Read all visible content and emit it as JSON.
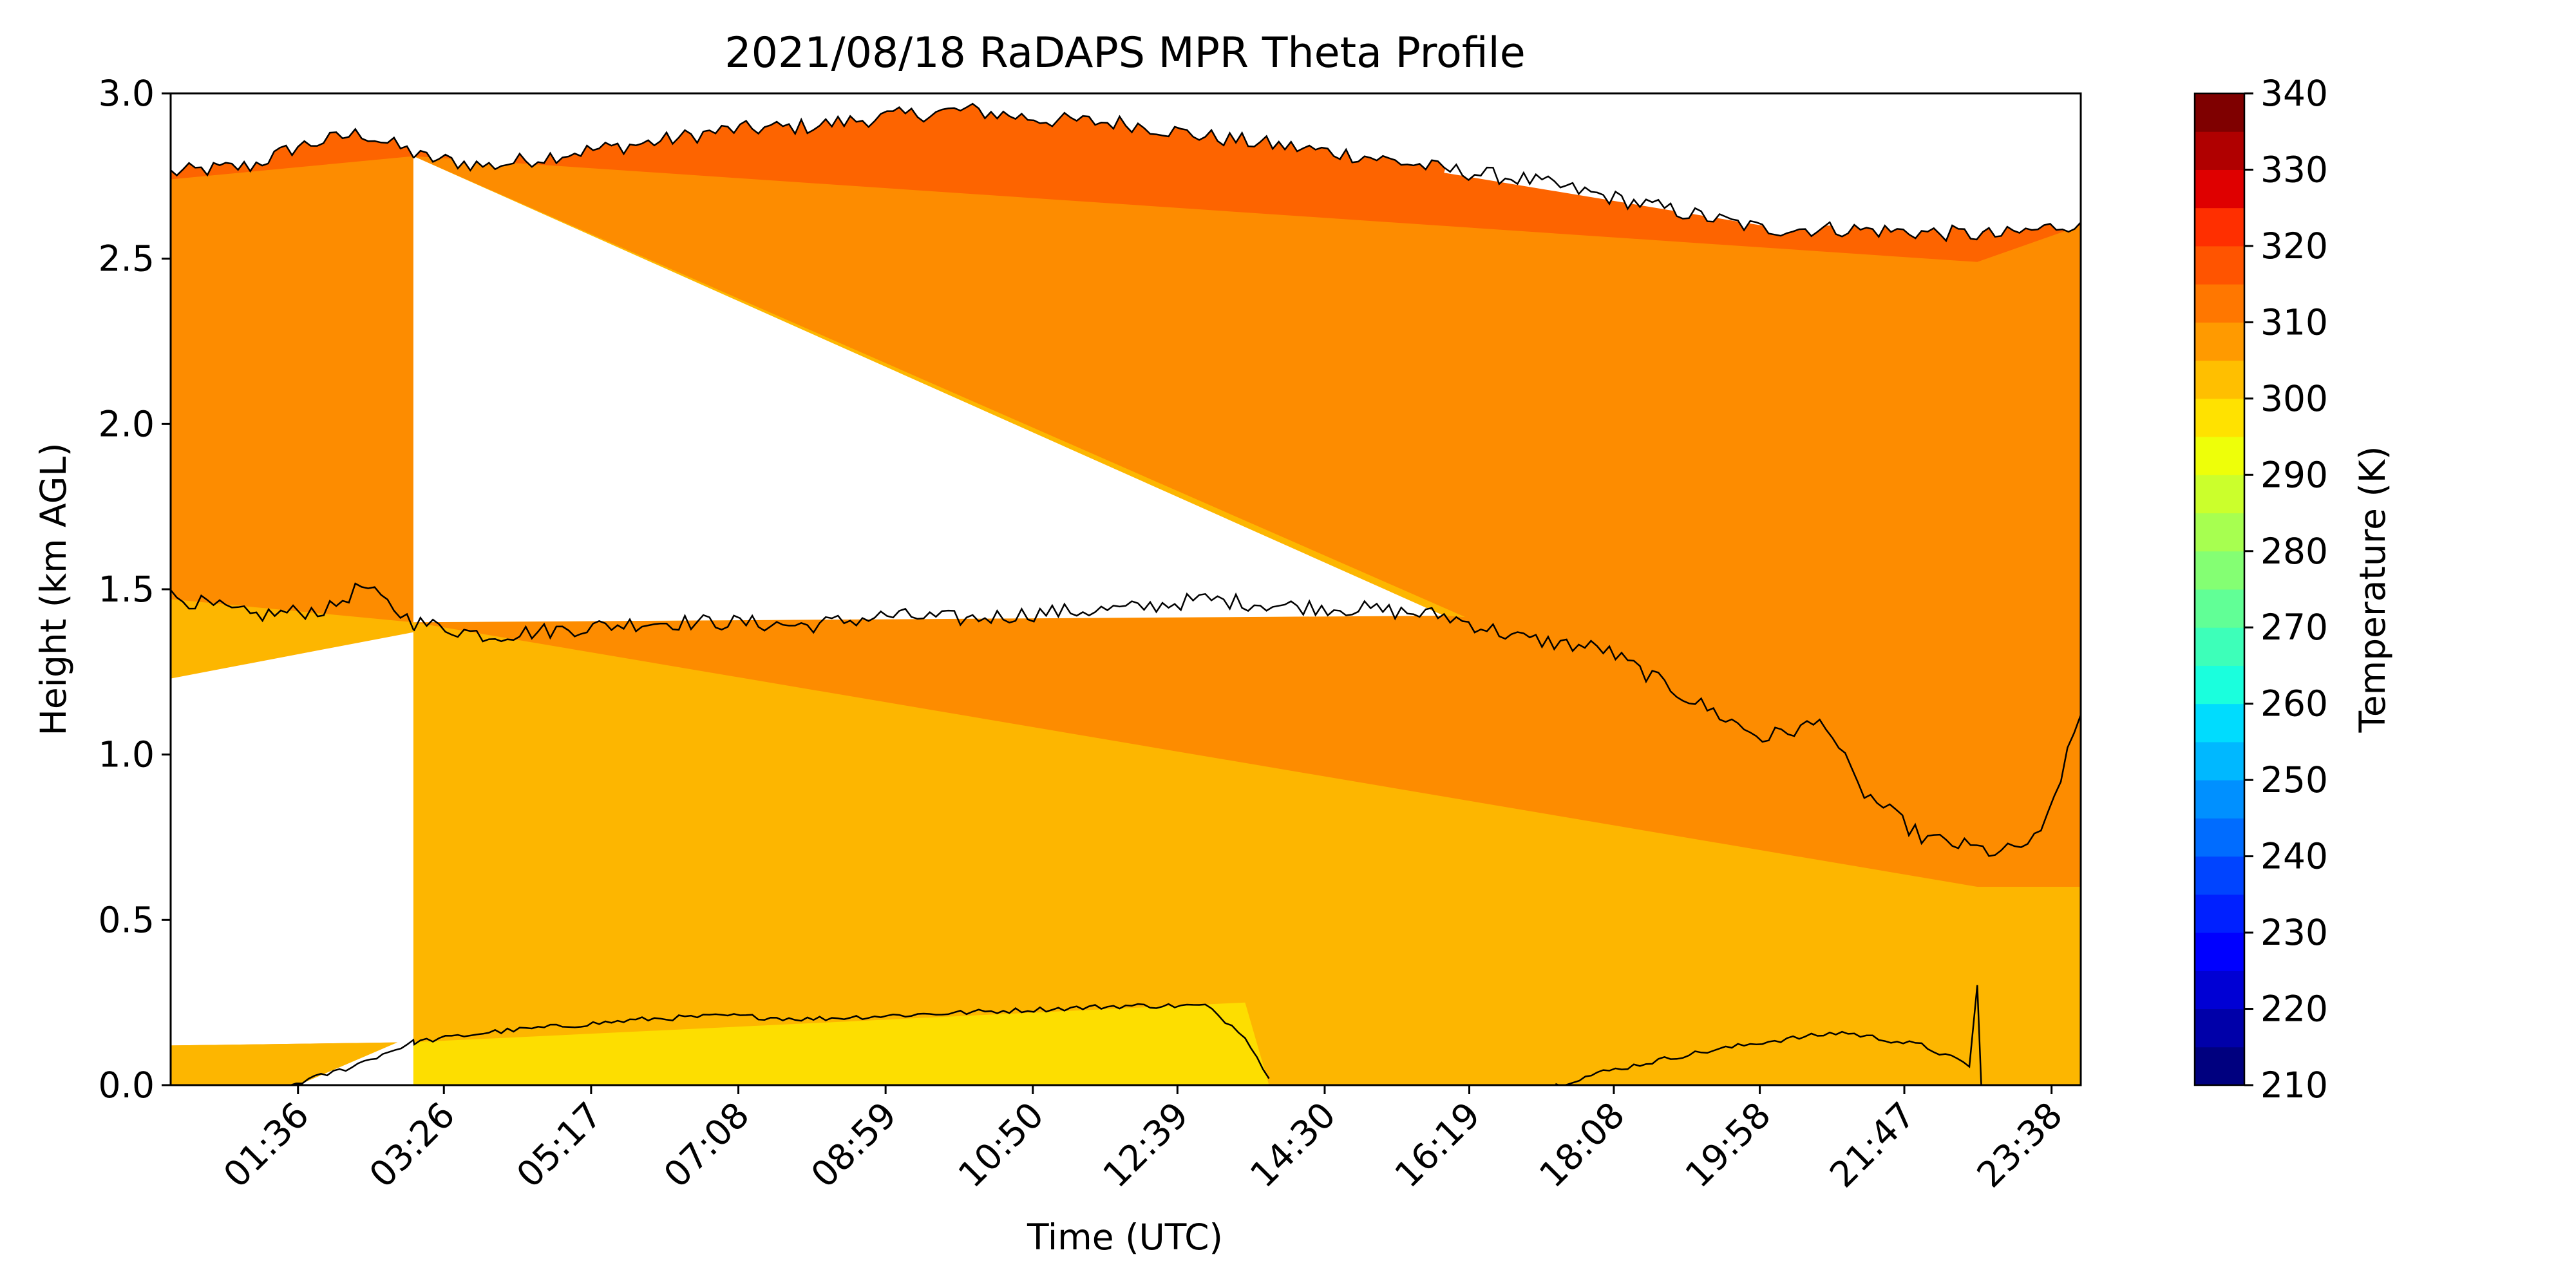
{
  "chart_data": {
    "type": "heatmap",
    "title": "2021/08/18 RaDAPS MPR Theta Profile",
    "xlabel": "Time (UTC)",
    "ylabel": "Height (km AGL)",
    "x_range_hours": [
      0.0,
      24.0
    ],
    "x_tick_labels": [
      "01:36",
      "03:26",
      "05:17",
      "07:08",
      "08:59",
      "10:50",
      "12:39",
      "14:30",
      "16:19",
      "18:08",
      "19:58",
      "21:47",
      "23:38"
    ],
    "x_tick_hours": [
      1.6,
      3.433,
      5.283,
      7.133,
      8.983,
      10.833,
      12.65,
      14.5,
      16.317,
      18.133,
      19.967,
      21.783,
      23.633
    ],
    "ylim": [
      0.0,
      3.0
    ],
    "y_ticks": [
      0.0,
      0.5,
      1.0,
      1.5,
      2.0,
      2.5,
      3.0
    ],
    "y_tick_labels": [
      "0.0",
      "0.5",
      "1.0",
      "1.5",
      "2.0",
      "2.5",
      "3.0"
    ],
    "colorbar": {
      "label": "Temperature (K)",
      "range": [
        210,
        340
      ],
      "tick_values": [
        210,
        220,
        230,
        240,
        250,
        260,
        270,
        280,
        290,
        300,
        310,
        320,
        330,
        340
      ],
      "tick_labels": [
        "210",
        "220",
        "230",
        "240",
        "250",
        "260",
        "270",
        "280",
        "290",
        "300",
        "310",
        "320",
        "330",
        "340"
      ]
    },
    "contours_km": {
      "upper_310K": [
        [
          0.0,
          2.76
        ],
        [
          1.0,
          2.78
        ],
        [
          1.6,
          2.84
        ],
        [
          2.4,
          2.88
        ],
        [
          3.05,
          2.82
        ],
        [
          3.06,
          2.81
        ],
        [
          4.0,
          2.78
        ],
        [
          5.0,
          2.82
        ],
        [
          6.0,
          2.85
        ],
        [
          7.0,
          2.89
        ],
        [
          8.0,
          2.9
        ],
        [
          9.0,
          2.93
        ],
        [
          10.0,
          2.95
        ],
        [
          11.0,
          2.92
        ],
        [
          12.0,
          2.91
        ],
        [
          13.0,
          2.87
        ],
        [
          14.0,
          2.84
        ],
        [
          15.0,
          2.81
        ],
        [
          16.0,
          2.77
        ],
        [
          17.0,
          2.74
        ],
        [
          18.0,
          2.69
        ],
        [
          19.0,
          2.64
        ],
        [
          20.0,
          2.59
        ],
        [
          21.0,
          2.59
        ],
        [
          22.0,
          2.58
        ],
        [
          23.0,
          2.57
        ],
        [
          24.0,
          2.61
        ]
      ],
      "middle_305K": [
        [
          0.0,
          1.48
        ],
        [
          1.0,
          1.42
        ],
        [
          2.0,
          1.44
        ],
        [
          2.4,
          1.51
        ],
        [
          3.05,
          1.4
        ],
        [
          3.06,
          1.4
        ],
        [
          4.0,
          1.36
        ],
        [
          5.0,
          1.38
        ],
        [
          6.0,
          1.4
        ],
        [
          7.0,
          1.4
        ],
        [
          8.0,
          1.39
        ],
        [
          9.0,
          1.42
        ],
        [
          10.0,
          1.41
        ],
        [
          11.0,
          1.43
        ],
        [
          12.0,
          1.44
        ],
        [
          13.0,
          1.47
        ],
        [
          14.0,
          1.45
        ],
        [
          15.0,
          1.44
        ],
        [
          16.0,
          1.42
        ],
        [
          17.0,
          1.35
        ],
        [
          18.0,
          1.32
        ],
        [
          19.0,
          1.18
        ],
        [
          20.0,
          1.05
        ],
        [
          20.8,
          1.1
        ],
        [
          21.2,
          0.9
        ],
        [
          22.0,
          0.75
        ],
        [
          23.0,
          0.7
        ],
        [
          23.5,
          0.75
        ],
        [
          24.0,
          1.12
        ]
      ],
      "lower_300K_left": [
        [
          1.5,
          0.0
        ],
        [
          2.2,
          0.05
        ],
        [
          3.05,
          0.13
        ],
        [
          3.06,
          0.13
        ],
        [
          4.0,
          0.16
        ],
        [
          5.0,
          0.18
        ],
        [
          6.0,
          0.2
        ],
        [
          7.0,
          0.21
        ],
        [
          8.0,
          0.2
        ],
        [
          9.0,
          0.21
        ],
        [
          10.0,
          0.22
        ],
        [
          11.0,
          0.23
        ],
        [
          12.0,
          0.24
        ],
        [
          13.0,
          0.24
        ],
        [
          13.5,
          0.15
        ],
        [
          13.8,
          0.02
        ]
      ],
      "lower_300K_right": [
        [
          17.4,
          0.0
        ],
        [
          18.0,
          0.04
        ],
        [
          19.0,
          0.09
        ],
        [
          20.0,
          0.13
        ],
        [
          21.0,
          0.16
        ],
        [
          22.0,
          0.12
        ],
        [
          22.6,
          0.06
        ],
        [
          22.7,
          0.3
        ],
        [
          22.75,
          0.0
        ]
      ]
    }
  }
}
